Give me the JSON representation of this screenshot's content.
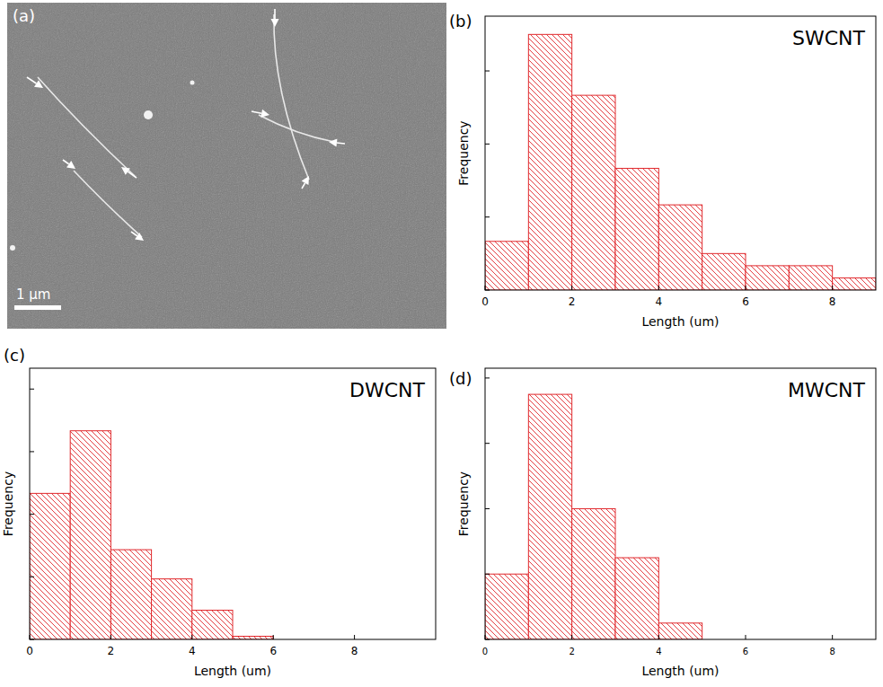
{
  "image": {
    "label": "(a)",
    "scale_bar": "1 μm"
  },
  "chart_data": [
    {
      "type": "histogram",
      "panel": "(b)",
      "title": "SWCNT",
      "x_label": "Length (um)",
      "y_label": "Frequency",
      "bins": [
        0,
        1,
        2,
        3,
        4,
        5,
        6,
        7,
        8,
        9
      ],
      "values": [
        4,
        21,
        16,
        10,
        7,
        3,
        2,
        2,
        1
      ],
      "color": "#e0282c",
      "xlim": [
        0,
        9
      ],
      "xticks": [
        0,
        2,
        4,
        6,
        8
      ],
      "ylim": [
        0,
        22.5
      ],
      "yticks": [
        0,
        6,
        12,
        18
      ],
      "tick_labels": "x"
    },
    {
      "type": "histogram",
      "panel": "(c)",
      "title": "DWCNT",
      "x_label": "Length (um)",
      "y_label": "Frequency",
      "bins": [
        0,
        1,
        2,
        3,
        4,
        5,
        6
      ],
      "values": [
        14,
        20,
        8.6,
        5.8,
        2.8,
        0.3
      ],
      "color": "#e0282c",
      "xlim": [
        0,
        10
      ],
      "xticks": [
        0,
        2,
        4,
        6,
        8
      ],
      "ylim": [
        0,
        26
      ],
      "yticks": [
        0,
        6,
        12,
        18,
        24
      ],
      "tick_labels": "x"
    },
    {
      "type": "histogram",
      "panel": "(d)",
      "title": "MWCNT",
      "x_label": "Length (um)",
      "y_label": "Frequency",
      "bins": [
        0,
        1,
        2,
        3,
        4,
        5
      ],
      "values": [
        4,
        15,
        8,
        5,
        1
      ],
      "color": "#e0282c",
      "xlim": [
        0,
        9
      ],
      "xticks": [
        0,
        2,
        4,
        6,
        8
      ],
      "ylim": [
        0,
        16.6
      ],
      "yticks": [
        0,
        4,
        8,
        12,
        16
      ],
      "tick_labels": "x"
    }
  ]
}
